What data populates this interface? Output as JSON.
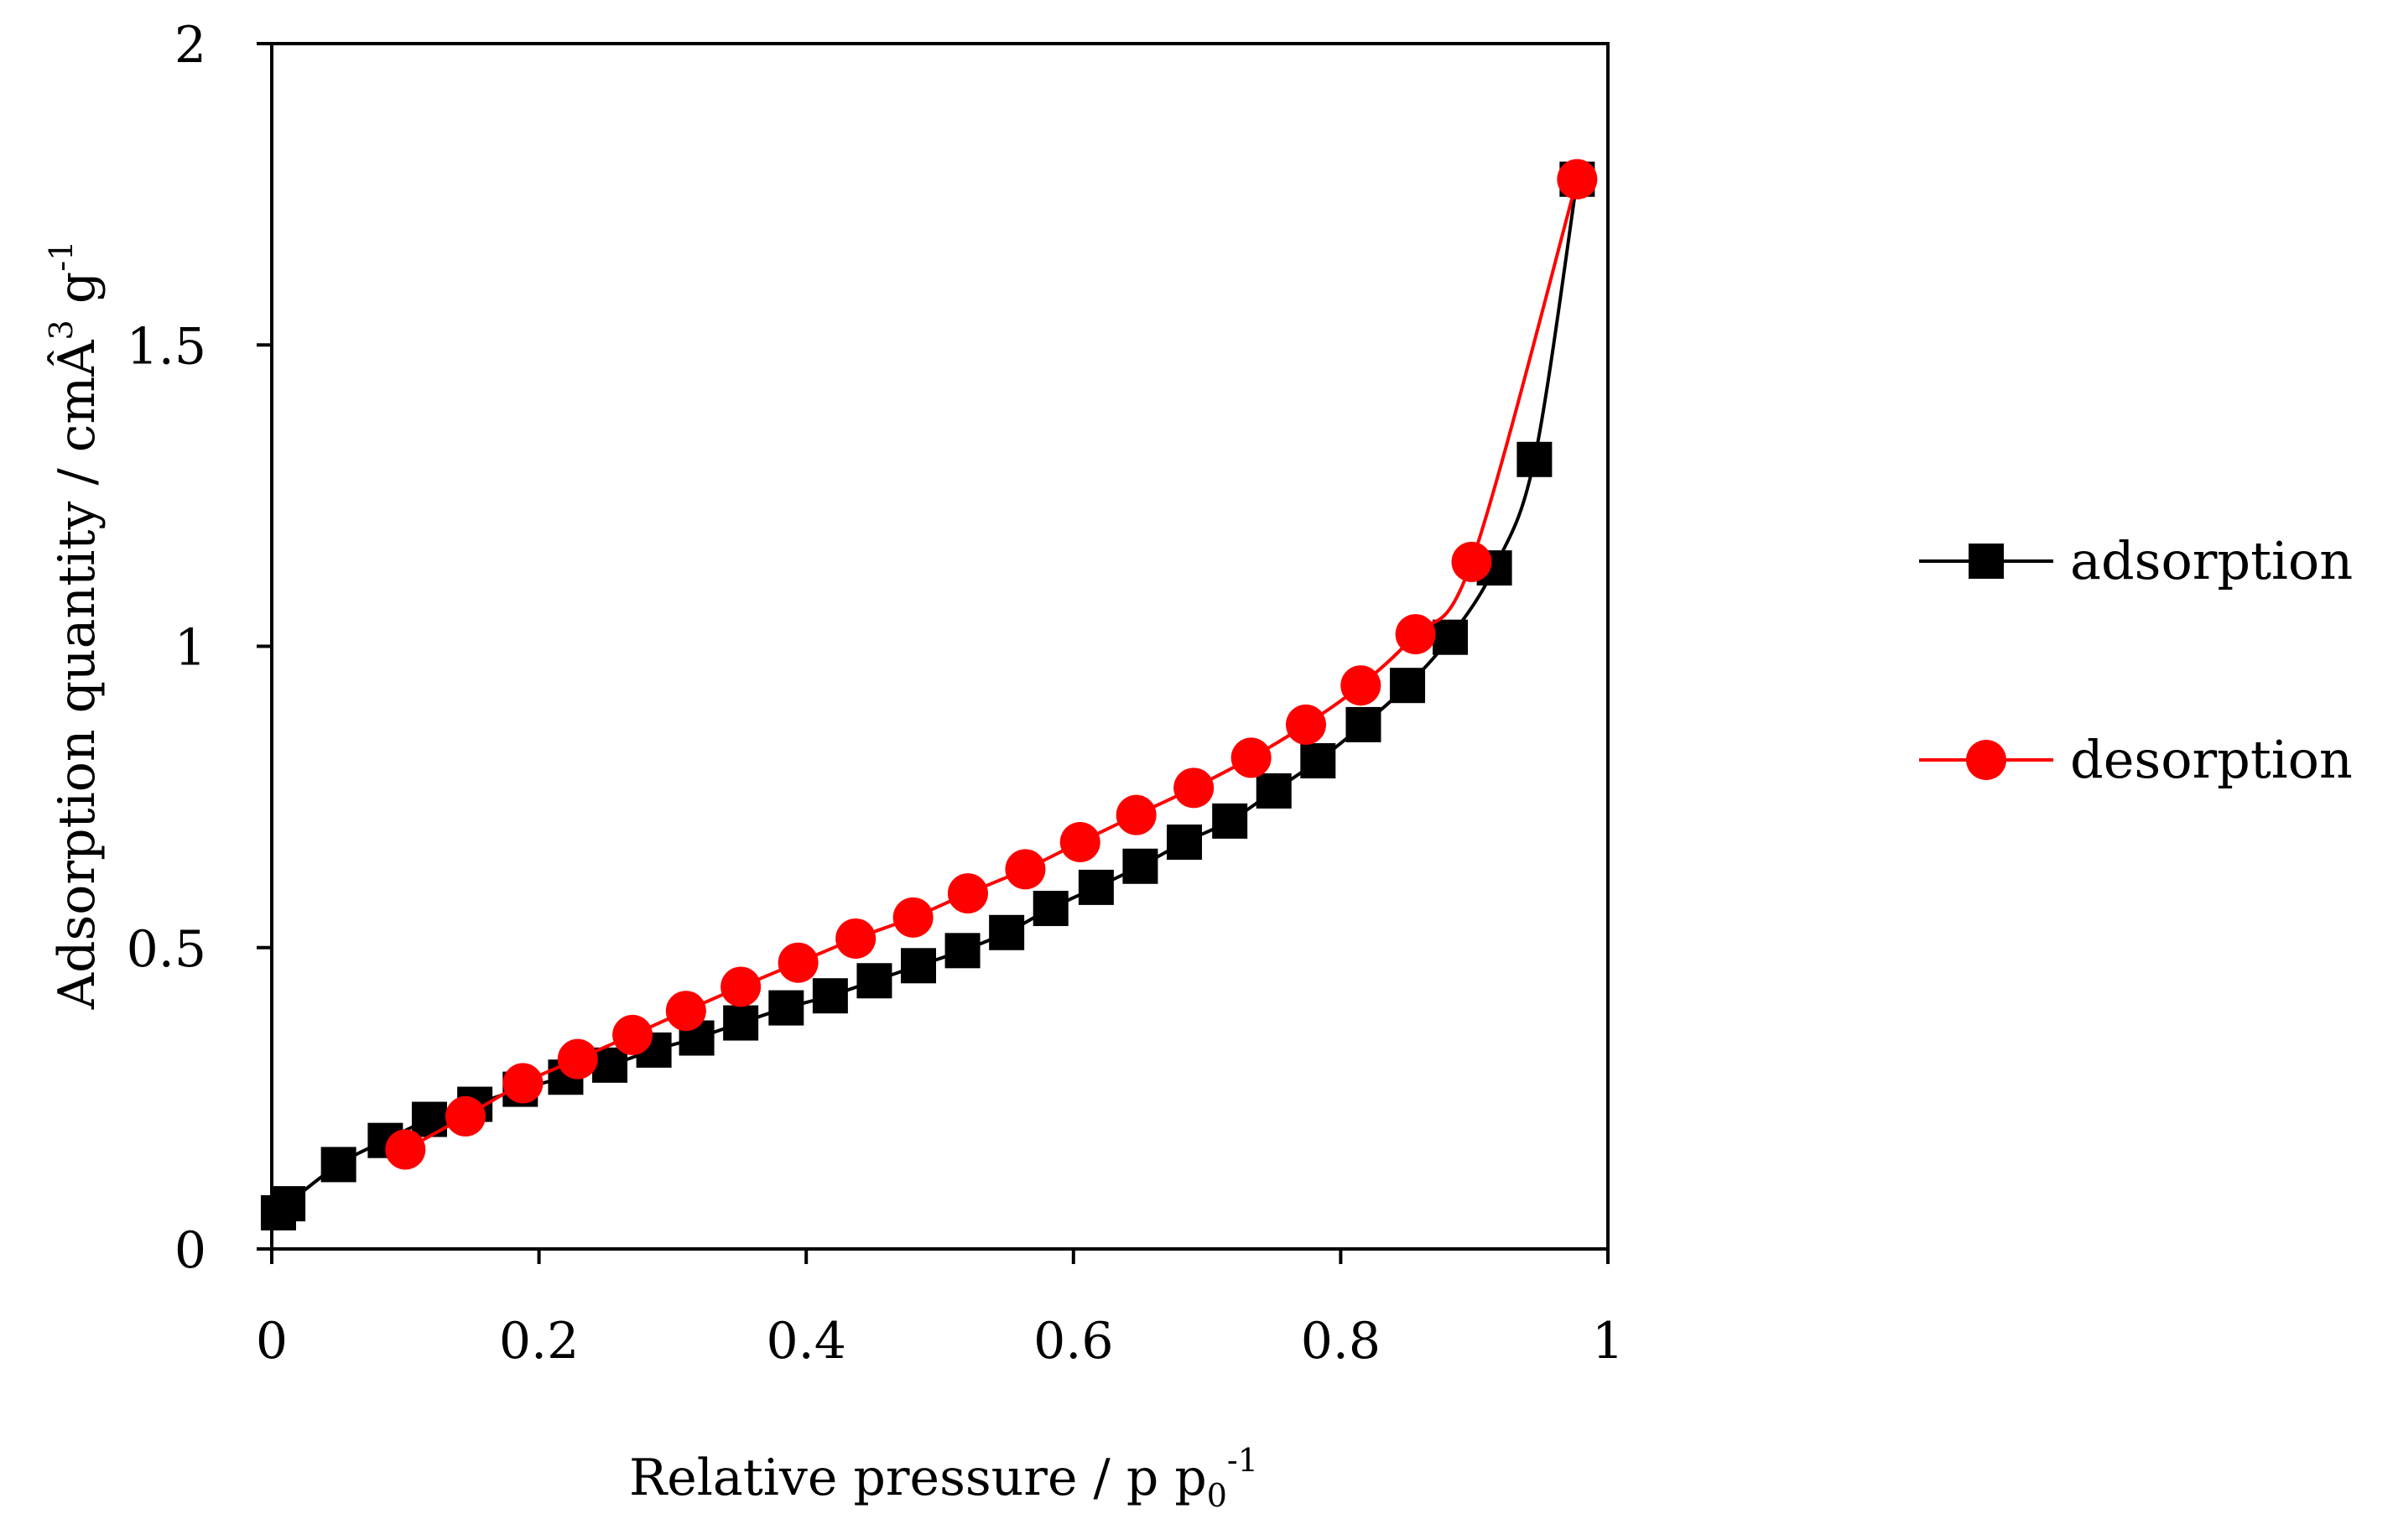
{
  "chart_data": {
    "type": "line",
    "title": "",
    "xlabel": "Relative pressure / p p",
    "xlabel_sub": "0",
    "xlabel_sup": "-1",
    "ylabel": "Adsorption quantity / cmÂ",
    "ylabel_sup1": "3",
    "ylabel_mid": " g",
    "ylabel_sup2": "-1",
    "xlim": [
      0,
      1
    ],
    "ylim": [
      0,
      2
    ],
    "xticks": [
      0,
      0.2,
      0.4,
      0.6,
      0.8,
      1
    ],
    "xtick_labels": [
      "0",
      "0.2",
      "0.4",
      "0.6",
      "0.8",
      "1"
    ],
    "yticks": [
      0,
      0.5,
      1,
      1.5,
      2
    ],
    "ytick_labels": [
      "0",
      "0.5",
      "1",
      "1.5",
      "2"
    ],
    "grid": false,
    "legend_position": "right",
    "series": [
      {
        "name": "adsorption",
        "color": "#000000",
        "marker": "square",
        "x": [
          0.005,
          0.012,
          0.05,
          0.085,
          0.118,
          0.152,
          0.186,
          0.22,
          0.253,
          0.286,
          0.318,
          0.351,
          0.385,
          0.418,
          0.451,
          0.484,
          0.517,
          0.55,
          0.583,
          0.617,
          0.65,
          0.683,
          0.717,
          0.75,
          0.783,
          0.817,
          0.85,
          0.882,
          0.915,
          0.945,
          0.977
        ],
        "y": [
          0.06,
          0.075,
          0.14,
          0.18,
          0.215,
          0.24,
          0.265,
          0.285,
          0.305,
          0.33,
          0.35,
          0.375,
          0.4,
          0.42,
          0.445,
          0.47,
          0.495,
          0.525,
          0.565,
          0.6,
          0.635,
          0.675,
          0.71,
          0.76,
          0.81,
          0.87,
          0.935,
          1.015,
          1.13,
          1.31,
          1.775
        ]
      },
      {
        "name": "desorption",
        "color": "#ff0000",
        "marker": "circle",
        "x": [
          0.1,
          0.145,
          0.188,
          0.229,
          0.27,
          0.31,
          0.351,
          0.394,
          0.437,
          0.48,
          0.521,
          0.564,
          0.605,
          0.647,
          0.69,
          0.733,
          0.774,
          0.815,
          0.856,
          0.898,
          0.977
        ],
        "y": [
          0.165,
          0.22,
          0.275,
          0.315,
          0.355,
          0.395,
          0.435,
          0.475,
          0.515,
          0.55,
          0.59,
          0.63,
          0.675,
          0.72,
          0.765,
          0.815,
          0.87,
          0.935,
          1.02,
          1.14,
          1.775
        ]
      }
    ]
  }
}
